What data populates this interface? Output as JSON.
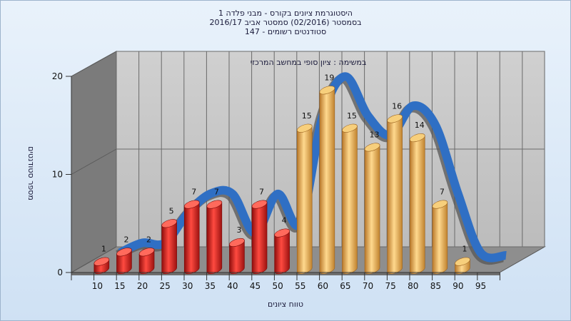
{
  "title_lines": [
    "היסטוגרמת ציונים בקורס - מבני פלדה 1",
    "בסמסטר  (02/2016)  סמסטר אביב 2016/17",
    "סטודנטים רשומים - 147"
  ],
  "colors": {
    "fail_bar": "#e0201e",
    "pass_bar": "#f1b85a",
    "trend_line": "#2f6fc4",
    "left_wall": "#7a7a7a",
    "back_wall": "#c6c6c6",
    "floor": "#8c8c8c"
  },
  "chart_data": {
    "type": "bar",
    "title": "היסטוגרמת ציונים בקורס - מבני פלדה 1",
    "subtitle": "בסמסטר  (02/2016)  סמסטר אביב 2016/17 / סטודנטים רשומים - 147",
    "annotation": "במשימה : ציון סופי במחשב המרכזי",
    "xlabel": "טווח ציונים",
    "ylabel": "מספר סטודנטים",
    "categories": [
      "10",
      "15",
      "20",
      "25",
      "30",
      "35",
      "40",
      "45",
      "50",
      "55",
      "60",
      "65",
      "70",
      "75",
      "80",
      "85",
      "90",
      "95"
    ],
    "x_tick_labels": [
      "10",
      "15",
      "20",
      "25",
      "30",
      "35",
      "40",
      "45",
      "50",
      "55",
      "60",
      "65",
      "70",
      "75",
      "80",
      "85",
      "90",
      "95"
    ],
    "values": [
      1,
      2,
      2,
      5,
      7,
      7,
      3,
      7,
      4,
      15,
      19,
      15,
      13,
      16,
      14,
      7,
      1,
      0
    ],
    "bar_groups": [
      "fail",
      "fail",
      "fail",
      "fail",
      "fail",
      "fail",
      "fail",
      "fail",
      "fail",
      "pass",
      "pass",
      "pass",
      "pass",
      "pass",
      "pass",
      "pass",
      "pass",
      "pass"
    ],
    "y_ticks": [
      0,
      10,
      20
    ],
    "ylim": [
      0,
      20
    ],
    "grid": true,
    "trend_line": true
  }
}
